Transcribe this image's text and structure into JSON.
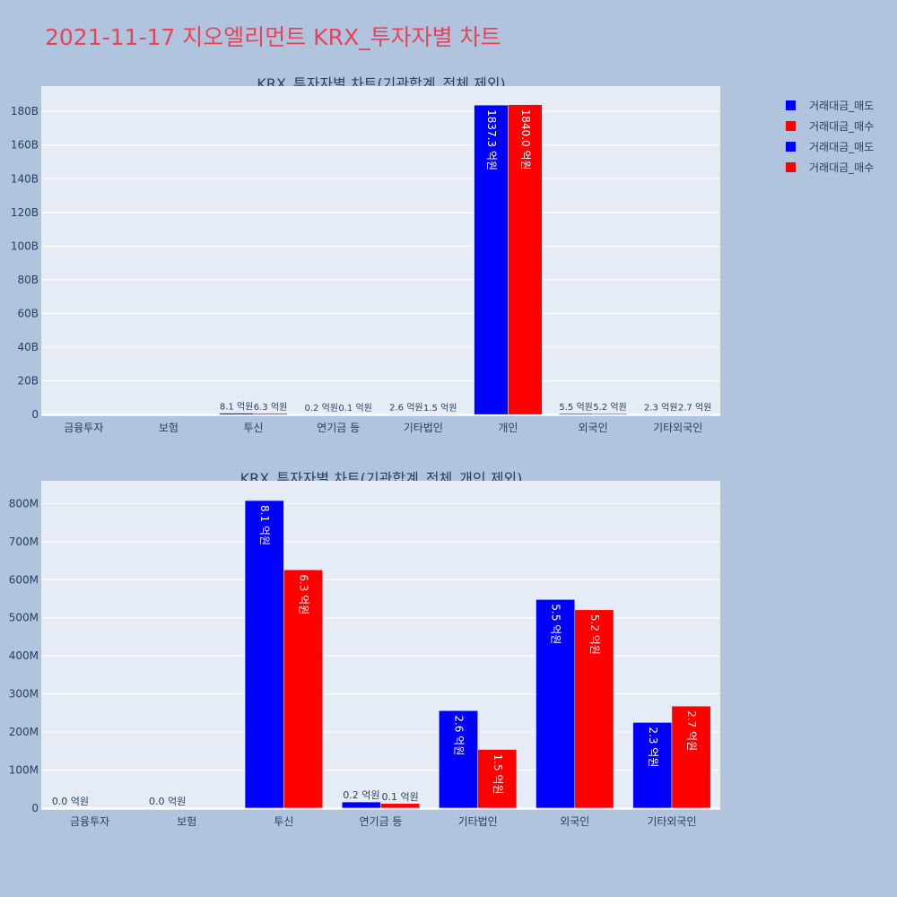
{
  "page_title": "2021-11-17 지오엘리먼트 KRX_투자자별 차트",
  "colors": {
    "sell": "#0000ff",
    "buy": "#ff0000",
    "plot_bg": "#e5ecf6",
    "paper_bg": "#b0c4de",
    "title": "#e8435a"
  },
  "legend": [
    {
      "label": "거래대금_매도",
      "color": "#0000ff"
    },
    {
      "label": "거래대금_매수",
      "color": "#ff0000"
    },
    {
      "label": "거래대금_매도",
      "color": "#0000ff"
    },
    {
      "label": "거래대금_매수",
      "color": "#ff0000"
    }
  ],
  "chart_data": [
    {
      "type": "bar",
      "title": "KRX_투자자별 차트(기관합계_전체 제외)",
      "categories": [
        "금융투자",
        "보험",
        "투신",
        "연기금 등",
        "기타법인",
        "개인",
        "외국인",
        "기타외국인"
      ],
      "series": [
        {
          "name": "거래대금_매도",
          "values": [
            0,
            0,
            0.81,
            0.02,
            0.26,
            183.73,
            0.55,
            0.23
          ],
          "labels": [
            "",
            "",
            "8.1 억원",
            "0.2 억원",
            "2.6 억원",
            "1837.3 억원",
            "5.5 억원",
            "2.3 억원"
          ]
        },
        {
          "name": "거래대금_매수",
          "values": [
            0,
            0,
            0.63,
            0.01,
            0.15,
            184.0,
            0.52,
            0.27
          ],
          "labels": [
            "",
            "",
            "6.3 억원",
            "0.1 억원",
            "1.5 억원",
            "1840.0 억원",
            "5.2 억원",
            "2.7 억원"
          ]
        }
      ],
      "y_unit": "B",
      "yticks": [
        0,
        20,
        40,
        60,
        80,
        100,
        120,
        140,
        160,
        180
      ],
      "ytick_labels": [
        "0",
        "20B",
        "40B",
        "60B",
        "80B",
        "100B",
        "120B",
        "140B",
        "160B",
        "180B"
      ],
      "ylim": [
        -1,
        195
      ],
      "grid": true,
      "legend_position": "top-right"
    },
    {
      "type": "bar",
      "title": "KRX_투자자별 차트(기관합계_전체_개인 제외)",
      "categories": [
        "금융투자",
        "보험",
        "투신",
        "연기금 등",
        "기타법인",
        "외국인",
        "기타외국인"
      ],
      "series": [
        {
          "name": "거래대금_매도",
          "values": [
            0,
            0,
            808,
            16,
            256,
            548,
            225
          ],
          "labels": [
            "0.0 억원",
            "0.0 억원",
            "8.1 억원",
            "0.2 억원",
            "2.6 억원",
            "5.5 억원",
            "2.3 억원"
          ]
        },
        {
          "name": "거래대금_매수",
          "values": [
            0,
            0,
            626,
            12,
            154,
            521,
            268
          ],
          "labels": [
            "",
            "",
            "6.3 억원",
            "0.1 억원",
            "1.5 억원",
            "5.2 억원",
            "2.7 억원"
          ]
        }
      ],
      "y_unit": "M",
      "yticks": [
        0,
        100,
        200,
        300,
        400,
        500,
        600,
        700,
        800
      ],
      "ytick_labels": [
        "0",
        "100M",
        "200M",
        "300M",
        "400M",
        "500M",
        "600M",
        "700M",
        "800M"
      ],
      "ylim": [
        -5,
        860
      ],
      "grid": true,
      "legend_position": "top-right"
    }
  ]
}
